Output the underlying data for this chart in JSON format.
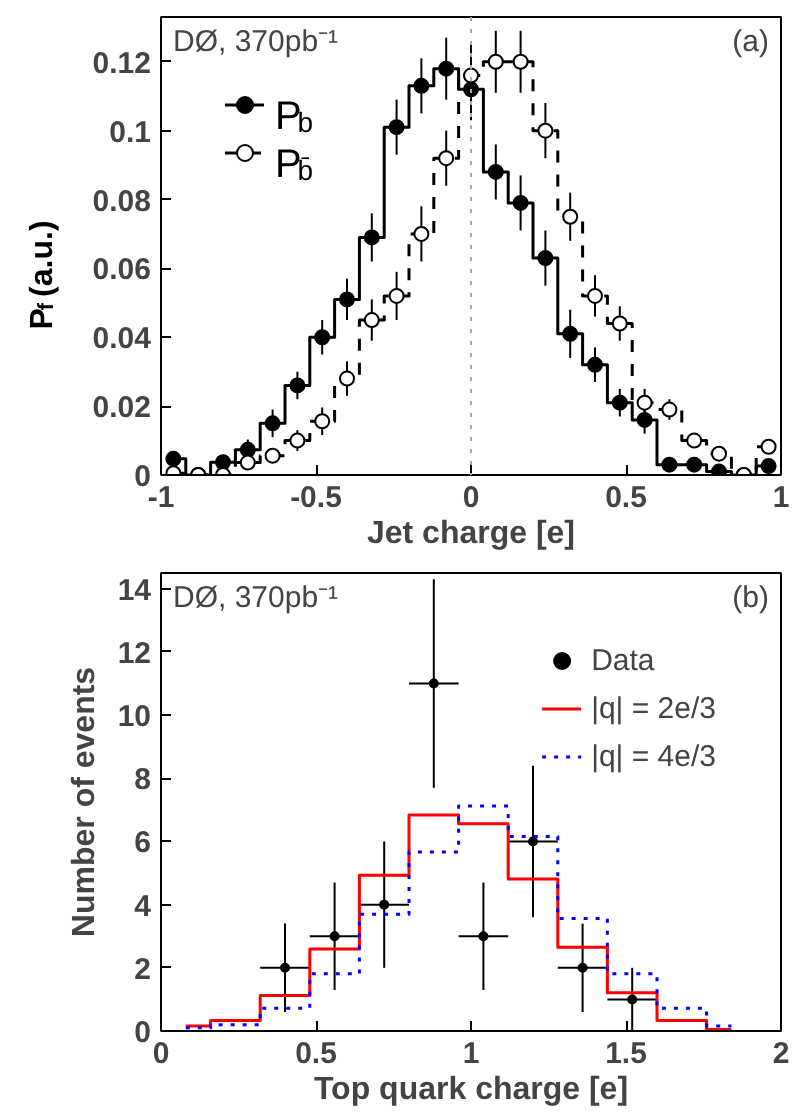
{
  "chart_data": [
    {
      "type": "step",
      "xlabel": "Jet charge [e]",
      "ylabel": "P$_{f}$ (a.u.)",
      "x": [
        -0.96,
        -0.88,
        -0.8,
        -0.72,
        -0.64,
        -0.56,
        -0.48,
        -0.4,
        -0.32,
        -0.24,
        -0.16,
        -0.08,
        0,
        0.08,
        0.16,
        0.24,
        0.32,
        0.4,
        0.48,
        0.56,
        0.64,
        0.72,
        0.8,
        0.88,
        0.96
      ],
      "series": [
        {
          "name": "P$_{b}$",
          "color": "#000000",
          "marker": "circle",
          "line_style": "solid",
          "values": [
            0.0047,
            0,
            0.0037,
            0.0073,
            0.015,
            0.026,
            0.04,
            0.051,
            0.069,
            0.101,
            0.113,
            0.118,
            0.112,
            0.088,
            0.079,
            0.063,
            0.041,
            0.032,
            0.021,
            0.016,
            0.003,
            0.003,
            0.001,
            0,
            0.0026
          ],
          "errors": [
            0.002,
            0.001,
            0.002,
            0.003,
            0.004,
            0.004,
            0.005,
            0.006,
            0.007,
            0.008,
            0.008,
            0.009,
            0.009,
            0.008,
            0.008,
            0.008,
            0.007,
            0.005,
            0.004,
            0.004,
            0.002,
            0.002,
            0.001,
            0.001,
            0.002
          ]
        },
        {
          "name": "P$_{b̄}$",
          "color": "#000000",
          "marker": "circle",
          "line_style": "dashed",
          "values": [
            0.0005,
            0,
            0,
            0.0036,
            0.0056,
            0.01,
            0.0156,
            0.028,
            0.045,
            0.052,
            0.07,
            0.092,
            0.116,
            0.12,
            0.12,
            0.1,
            0.075,
            0.052,
            0.044,
            0.021,
            0.019,
            0.01,
            0.0062,
            0,
            0.0082
          ],
          "errors": [
            0.001,
            0.001,
            0.001,
            0.002,
            0.002,
            0.003,
            0.004,
            0.005,
            0.006,
            0.007,
            0.008,
            0.008,
            0.009,
            0.009,
            0.009,
            0.008,
            0.007,
            0.006,
            0.005,
            0.004,
            0.003,
            0.002,
            0.002,
            0.001,
            0.002
          ]
        }
      ],
      "xlim": [
        -1,
        1
      ],
      "ylim": [
        0,
        0.133
      ],
      "xticks": [
        -1,
        -0.5,
        0,
        0.5,
        1
      ],
      "yticks": [
        0,
        0.02,
        0.04,
        0.06,
        0.08,
        0.1,
        0.12
      ],
      "ref_lines": [
        {
          "axis": "x",
          "value": 0,
          "color": "#aaaaaa",
          "line_style": "dotted"
        }
      ],
      "annotations": [
        "DØ, 370pb⁻¹",
        "(a)"
      ],
      "legend": "top left"
    },
    {
      "type": "step",
      "xlabel": "Top quark charge [e]",
      "ylabel": "Number of events",
      "x": [
        0.08,
        0.24,
        0.4,
        0.56,
        0.72,
        0.88,
        1.04,
        1.2,
        1.36,
        1.52,
        1.68,
        1.84
      ],
      "series": [
        {
          "name": "Data",
          "type": "scatter",
          "color": "#000000",
          "marker": "circle",
          "x": [
            0.4,
            0.56,
            0.72,
            0.88,
            1.04,
            1.2,
            1.36,
            1.52
          ],
          "values": [
            2,
            3,
            4,
            11,
            3,
            6,
            2,
            1
          ],
          "errors": [
            [
              0.6,
              3.4
            ],
            [
              1.3,
              4.7
            ],
            [
              2,
              6
            ],
            [
              7.7,
              14.3
            ],
            [
              1.3,
              4.7
            ],
            [
              3.6,
              8.4
            ],
            [
              0.6,
              3.4
            ],
            [
              0,
              2
            ]
          ],
          "xerrors": [
            0.08,
            0.08,
            0.08,
            0.08,
            0.08,
            0.08,
            0.08,
            0.08
          ]
        },
        {
          "name": "|q| = 2e/3",
          "color": "#ff0000",
          "line_style": "solid",
          "values": [
            0.16,
            0.33,
            1.12,
            2.6,
            4.93,
            6.84,
            6.56,
            4.81,
            2.65,
            1.21,
            0.33,
            0.05
          ]
        },
        {
          "name": "|q| = 4e/3",
          "color": "#0000ff",
          "line_style": "dotted",
          "values": [
            0.1,
            0.2,
            0.72,
            1.81,
            3.7,
            5.67,
            7.12,
            6.16,
            3.56,
            1.81,
            0.72,
            0.16
          ]
        }
      ],
      "xlim": [
        0,
        2
      ],
      "ylim": [
        0,
        14.5
      ],
      "xticks": [
        0,
        0.5,
        1,
        1.5,
        2
      ],
      "yticks": [
        0,
        2,
        4,
        6,
        8,
        10,
        12,
        14
      ],
      "annotations": [
        "DØ, 370pb⁻¹",
        "(b)"
      ],
      "legend": "top right"
    }
  ]
}
